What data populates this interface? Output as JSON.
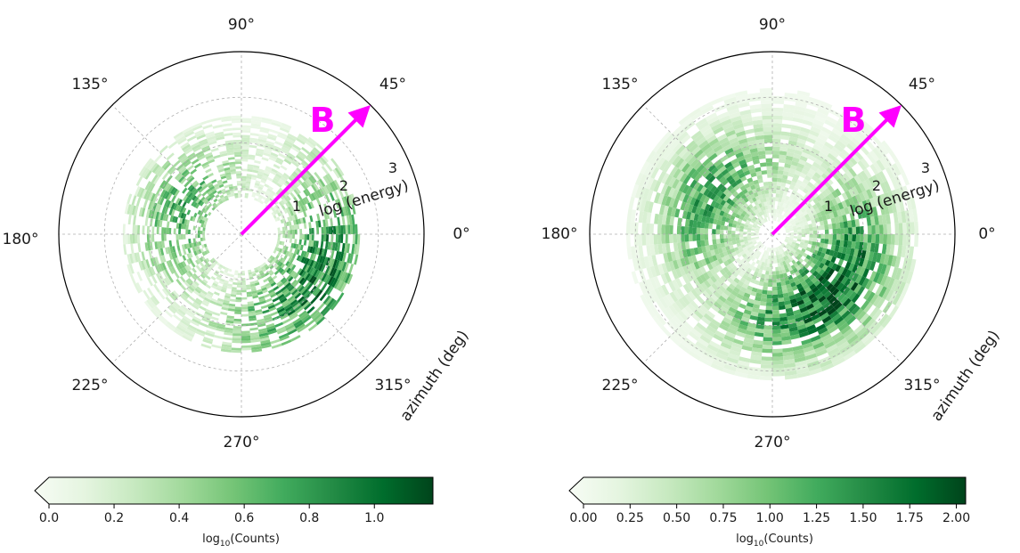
{
  "chart_data": [
    {
      "type": "heatmap",
      "projection": "polar",
      "theta_tick_labels": [
        "0°",
        "45°",
        "90°",
        "135°",
        "180°",
        "225°",
        "270°",
        "315°"
      ],
      "r_tick_labels": [
        "1",
        "2",
        "3"
      ],
      "r_axis_label": "log (energy)",
      "theta_axis_label": "azimuth (deg)",
      "r_range": [
        0,
        4
      ],
      "grid": true,
      "arrow": {
        "label": "B",
        "direction_deg": 45,
        "color": "#ff00ff"
      },
      "colorbar": {
        "label_base": "log",
        "label_sub": "10",
        "label_rest": "(Counts)",
        "ticks": [
          "0.0",
          "0.2",
          "0.4",
          "0.6",
          "0.8",
          "1.0"
        ],
        "tick_values": [
          0,
          0.2,
          0.4,
          0.6,
          0.8,
          1.0
        ],
        "range": [
          0,
          1.18
        ],
        "colormap": "Greens",
        "extend": "min"
      },
      "density_peaks": [
        {
          "theta_deg": 330,
          "r": 1.9,
          "value": 1.0
        },
        {
          "theta_deg": 160,
          "r": 1.4,
          "value": 0.75
        }
      ],
      "density_radial_range": [
        0.8,
        2.6
      ]
    },
    {
      "type": "heatmap",
      "projection": "polar",
      "theta_tick_labels": [
        "0°",
        "45°",
        "90°",
        "135°",
        "180°",
        "225°",
        "270°",
        "315°"
      ],
      "r_tick_labels": [
        "1",
        "2",
        "3"
      ],
      "r_axis_label": "log (energy)",
      "theta_axis_label": "azimuth (deg)",
      "r_range": [
        0,
        4
      ],
      "grid": true,
      "arrow": {
        "label": "B",
        "direction_deg": 45,
        "color": "#ff00ff"
      },
      "colorbar": {
        "label_base": "log",
        "label_sub": "10",
        "label_rest": "(Counts)",
        "ticks": [
          "0.00",
          "0.25",
          "0.50",
          "0.75",
          "1.00",
          "1.25",
          "1.50",
          "1.75",
          "2.00"
        ],
        "tick_values": [
          0,
          0.25,
          0.5,
          0.75,
          1.0,
          1.25,
          1.5,
          1.75,
          2.0
        ],
        "range": [
          0,
          2.05
        ],
        "colormap": "Greens",
        "extend": "min"
      },
      "density_peaks": [
        {
          "theta_deg": 315,
          "r": 1.8,
          "value": 2.0
        },
        {
          "theta_deg": 150,
          "r": 1.6,
          "value": 1.4
        }
      ],
      "density_radial_range": [
        0.3,
        3.2
      ]
    }
  ]
}
